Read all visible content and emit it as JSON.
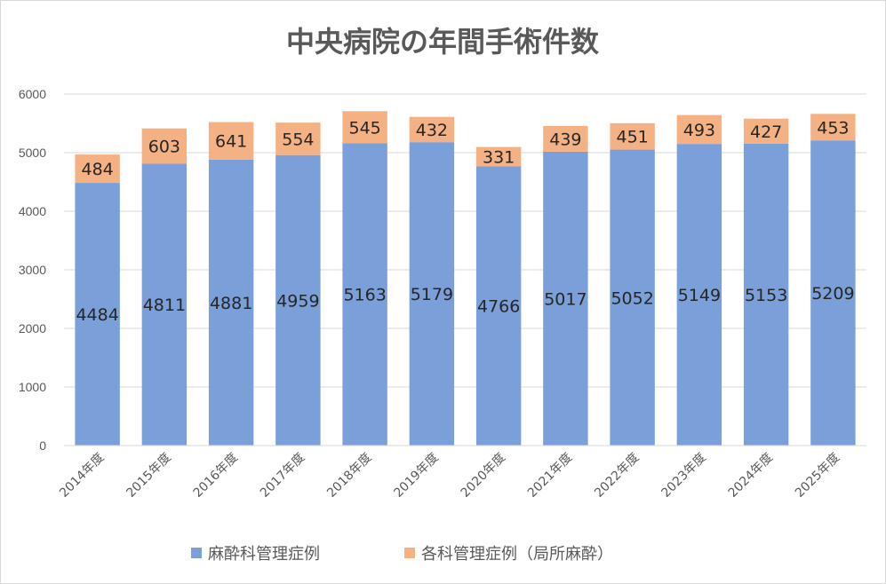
{
  "chart_data": {
    "type": "bar",
    "stacked": true,
    "title": "中央病院の年間手術件数",
    "xlabel": "",
    "ylabel": "",
    "ylim": [
      0,
      6000
    ],
    "yticks": [
      0,
      1000,
      2000,
      3000,
      4000,
      5000,
      6000
    ],
    "grid": true,
    "legend_position": "bottom",
    "categories": [
      "2014年度",
      "2015年度",
      "2016年度",
      "2017年度",
      "2018年度",
      "2019年度",
      "2020年度",
      "2021年度",
      "2022年度",
      "2023年度",
      "2024年度",
      "2025年度"
    ],
    "series": [
      {
        "name": "麻酔科管理症例",
        "color": "#7b9fd8",
        "values": [
          4484,
          4811,
          4881,
          4959,
          5163,
          5179,
          4766,
          5017,
          5052,
          5149,
          5153,
          5209
        ]
      },
      {
        "name": "各科管理症例（局所麻酔）",
        "color": "#f4b183",
        "values": [
          484,
          603,
          641,
          554,
          545,
          432,
          331,
          439,
          451,
          493,
          427,
          453
        ]
      }
    ]
  }
}
